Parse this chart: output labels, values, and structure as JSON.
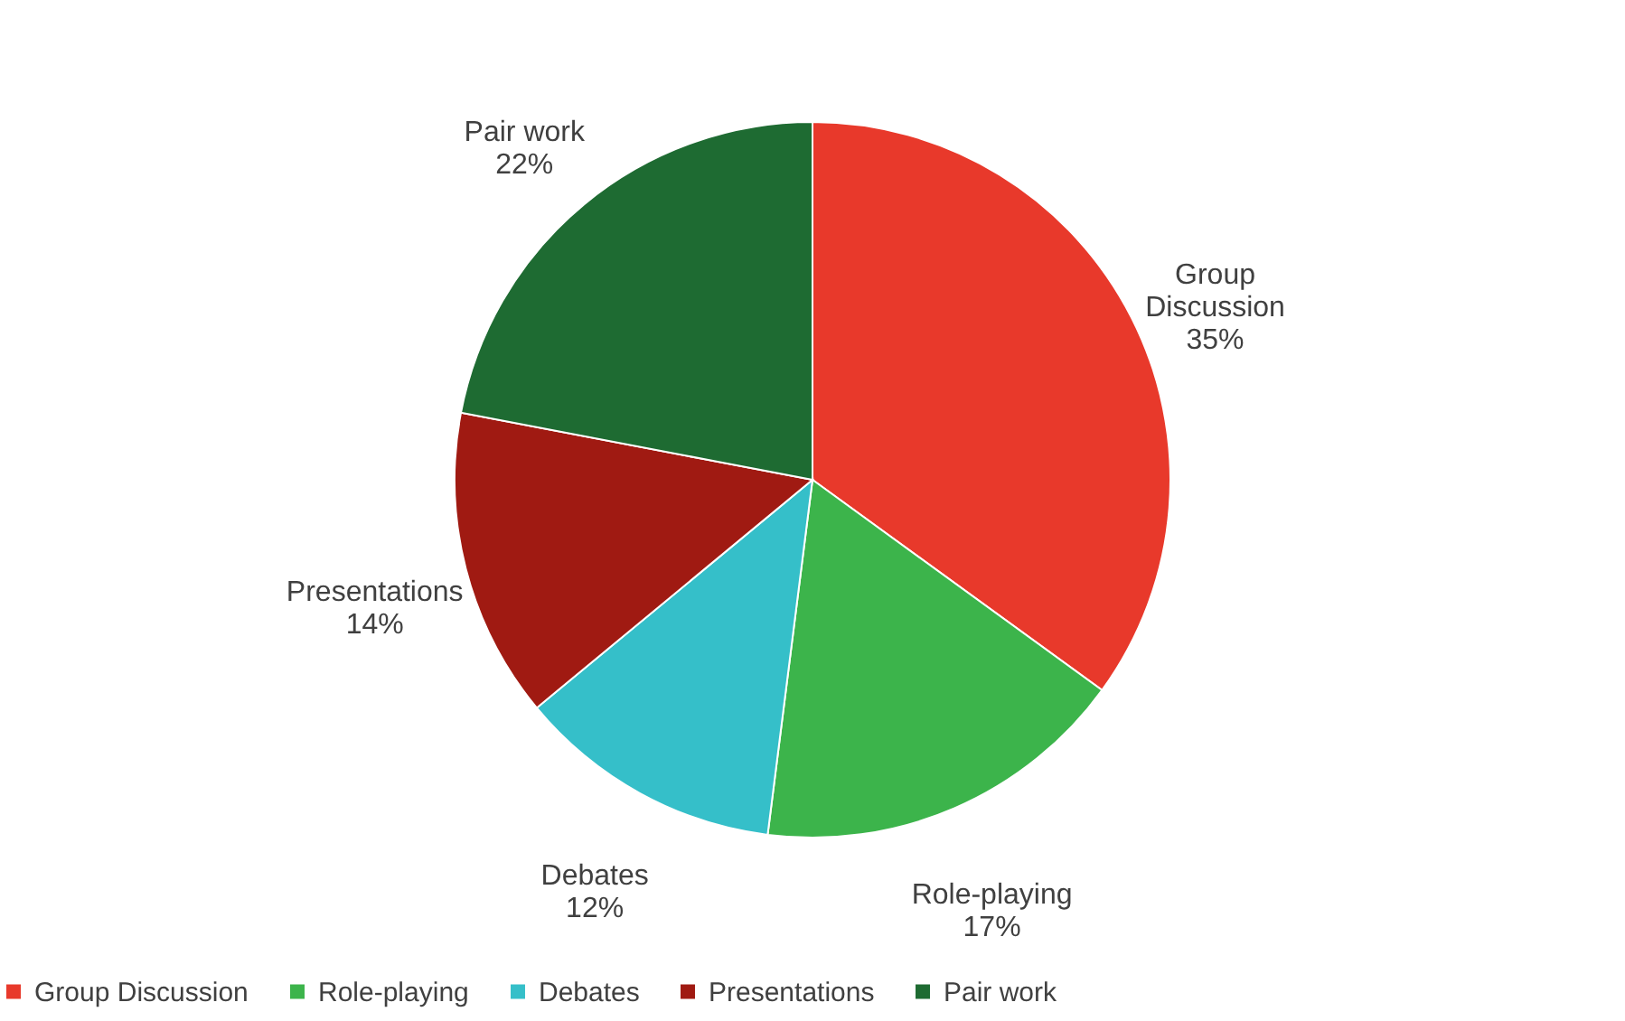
{
  "chart_data": {
    "type": "pie",
    "categories": [
      "Group Discussion",
      "Role-playing",
      "Debates",
      "Presentations",
      "Pair work"
    ],
    "values": [
      35,
      17,
      12,
      14,
      22
    ],
    "colors": [
      "#e8392b",
      "#3cb44b",
      "#35bfc9",
      "#a01a12",
      "#1e6b32"
    ],
    "value_labels": [
      "35%",
      "17%",
      "12%",
      "14%",
      "22%"
    ],
    "legend": "bottom"
  }
}
